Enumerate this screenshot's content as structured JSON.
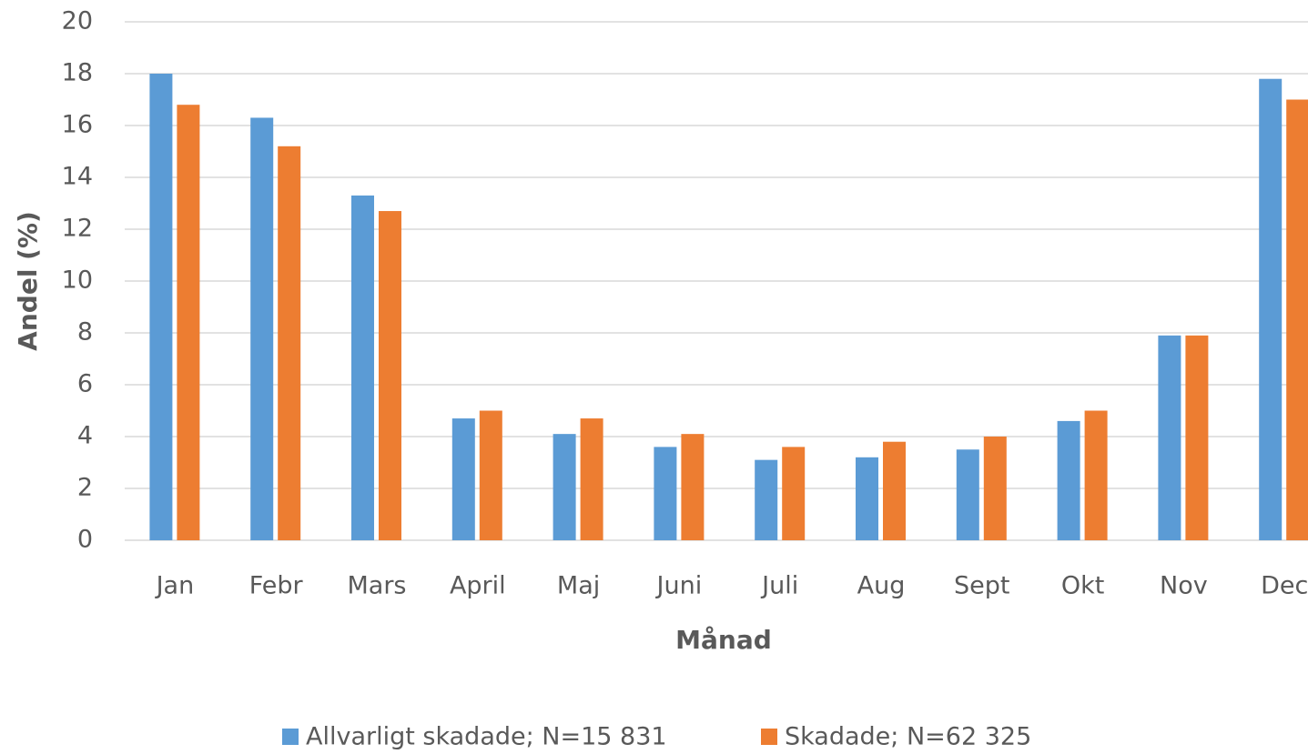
{
  "chart_data": {
    "type": "bar",
    "x_label": "Månad",
    "y_label": "Andel (%)",
    "categories": [
      "Jan",
      "Febr",
      "Mars",
      "April",
      "Maj",
      "Juni",
      "Juli",
      "Aug",
      "Sept",
      "Okt",
      "Nov",
      "Dec"
    ],
    "series": [
      {
        "name": "Allvarligt skadade; N=15 831",
        "color": "#5b9bd5",
        "values": [
          18.0,
          16.3,
          13.3,
          4.7,
          4.1,
          3.6,
          3.1,
          3.2,
          3.5,
          4.6,
          7.9,
          17.8
        ]
      },
      {
        "name": "Skadade; N=62 325",
        "color": "#ed7d31",
        "values": [
          16.8,
          15.2,
          12.7,
          5.0,
          4.7,
          4.1,
          3.6,
          3.8,
          4.0,
          5.0,
          7.9,
          17.0
        ]
      }
    ],
    "ylim": [
      0,
      20
    ],
    "yticks": [
      0,
      2,
      4,
      6,
      8,
      10,
      12,
      14,
      16,
      18,
      20
    ],
    "grid": true,
    "legend": "bottom"
  }
}
